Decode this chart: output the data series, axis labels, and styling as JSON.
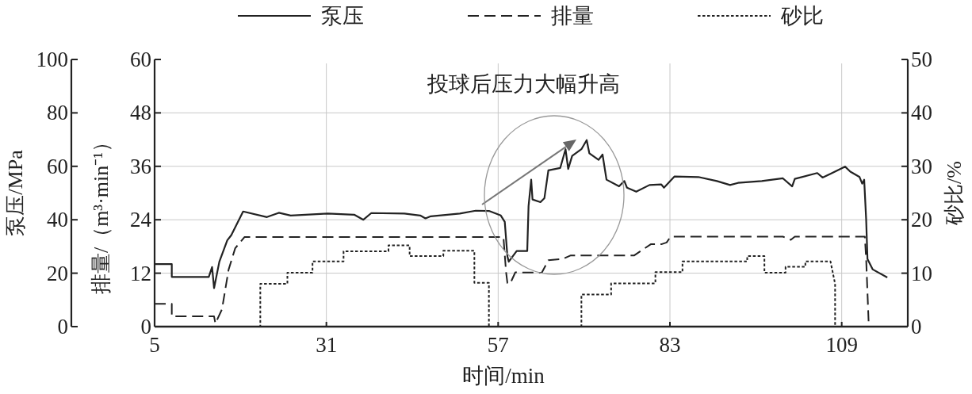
{
  "chart_data": {
    "type": "line",
    "xlabel": "时间/min",
    "ylabel": "泵压/MPa",
    "y2label": "排量/（m³·min⁻¹）",
    "y3label": "砂比/%",
    "xlim": [
      5,
      119
    ],
    "xticks": [
      5,
      31,
      57,
      83,
      109
    ],
    "ylim": [
      0,
      100
    ],
    "yticks": [
      0,
      20,
      40,
      60,
      80,
      100
    ],
    "y2lim": [
      0,
      60
    ],
    "y2ticks": [
      0,
      12,
      24,
      36,
      48,
      60
    ],
    "y3lim": [
      0,
      50
    ],
    "y3ticks": [
      0,
      10,
      20,
      30,
      40,
      50
    ],
    "grid": true,
    "legend": "top",
    "annotations": [
      "投球后压力大幅升高"
    ],
    "series": [
      {
        "name": "泵压",
        "color": "#222222",
        "line_style": "solid",
        "x": [
          5,
          7.6,
          7.6,
          13.2,
          13.7,
          14.0,
          14.8,
          16.0,
          16.6,
          18.4,
          22.0,
          23.8,
          25.6,
          31.2,
          35.2,
          36.6,
          37.8,
          42.8,
          45.2,
          46.0,
          46.8,
          51.2,
          53.6,
          55.6,
          57.4,
          58.0,
          58.4,
          58.6,
          59.2,
          59.8,
          61.4,
          61.6,
          62.0,
          62.2,
          63.4,
          64.0,
          64.6,
          66.4,
          67.2,
          67.6,
          68.2,
          69.6,
          70.4,
          70.8,
          72.2,
          72.8,
          73.4,
          75.3,
          76.1,
          76.5,
          77.9,
          79.9,
          81.7,
          82.1,
          83.7,
          87.3,
          90.1,
          92.1,
          93.3,
          96.9,
          100.1,
          101.5,
          101.9,
          105.3,
          106.1,
          107.3,
          109.5,
          110.3,
          111.7,
          112.1,
          112.4,
          112.7,
          112.9,
          113.7,
          115.9
        ],
        "values": [
          23.4,
          23.4,
          18.6,
          18.6,
          22.3,
          14.4,
          24.3,
          32.3,
          34.2,
          43.1,
          41.0,
          42.6,
          41.6,
          42.3,
          41.9,
          40.0,
          42.5,
          42.3,
          41.6,
          40.5,
          41.3,
          42.3,
          43.4,
          43.3,
          41.6,
          39.2,
          26.3,
          24.3,
          26.3,
          28.3,
          28.3,
          45.1,
          55.0,
          47.6,
          46.6,
          48.1,
          58.5,
          59.4,
          66.4,
          59.0,
          63.9,
          66.4,
          69.8,
          64.9,
          62.4,
          64.4,
          55.0,
          52.5,
          54.5,
          52.0,
          50.5,
          53.0,
          53.2,
          52.0,
          56.2,
          56.0,
          54.5,
          53.0,
          53.8,
          54.5,
          55.5,
          52.5,
          55.3,
          57.5,
          55.8,
          57.2,
          59.9,
          58.0,
          56.0,
          53.5,
          55.0,
          40.1,
          25.3,
          21.4,
          18.4
        ]
      },
      {
        "name": "排量",
        "color": "#222222",
        "line_style": "dashed",
        "axis": "y2",
        "x": [
          5,
          7.6,
          7.6,
          14.0,
          14.2,
          15.2,
          16.2,
          17.2,
          18.6,
          57.8,
          58.2,
          58.4,
          58.8,
          59.6,
          63.6,
          64.6,
          66.8,
          68.0,
          77.6,
          78.9,
          80.1,
          81.7,
          82.5,
          83.1,
          100.1,
          101.3,
          101.9,
          112.5,
          112.7,
          113.1
        ],
        "values": [
          5.1,
          5.1,
          2.3,
          2.3,
          0.7,
          3.9,
          12.8,
          17.6,
          20.1,
          20.1,
          12.2,
          9.8,
          9.6,
          12.2,
          12.1,
          14.9,
          15.2,
          16.0,
          16.0,
          17.3,
          18.5,
          18.5,
          18.9,
          20.2,
          20.2,
          19.5,
          20.2,
          20.2,
          15.2,
          0
        ]
      },
      {
        "name": "砂比",
        "color": "#222222",
        "line_style": "dotted",
        "axis": "y3",
        "x": [
          5,
          21.0,
          21.0,
          25.1,
          25.1,
          28.9,
          28.9,
          33.6,
          33.6,
          40.4,
          40.4,
          43.6,
          43.6,
          48.7,
          48.7,
          53.4,
          53.4,
          55.6,
          55.6,
          69.6,
          69.6,
          74.1,
          74.1,
          80.8,
          80.8,
          84.9,
          84.9,
          94.7,
          94.7,
          97.3,
          97.3,
          100.5,
          100.5,
          103.5,
          103.5,
          107.3,
          108.0,
          108.0,
          116
        ],
        "values": [
          0,
          0,
          8.0,
          8.0,
          10.1,
          10.1,
          12.2,
          12.2,
          14.1,
          14.1,
          15.2,
          15.2,
          13.2,
          13.2,
          14.2,
          14.2,
          8.2,
          8.2,
          0,
          0,
          6.0,
          6.0,
          8.1,
          8.1,
          10.2,
          10.2,
          12.2,
          12.2,
          13.2,
          13.2,
          10.1,
          10.1,
          11.2,
          11.2,
          12.2,
          12.2,
          8.0,
          0,
          0
        ]
      }
    ]
  }
}
